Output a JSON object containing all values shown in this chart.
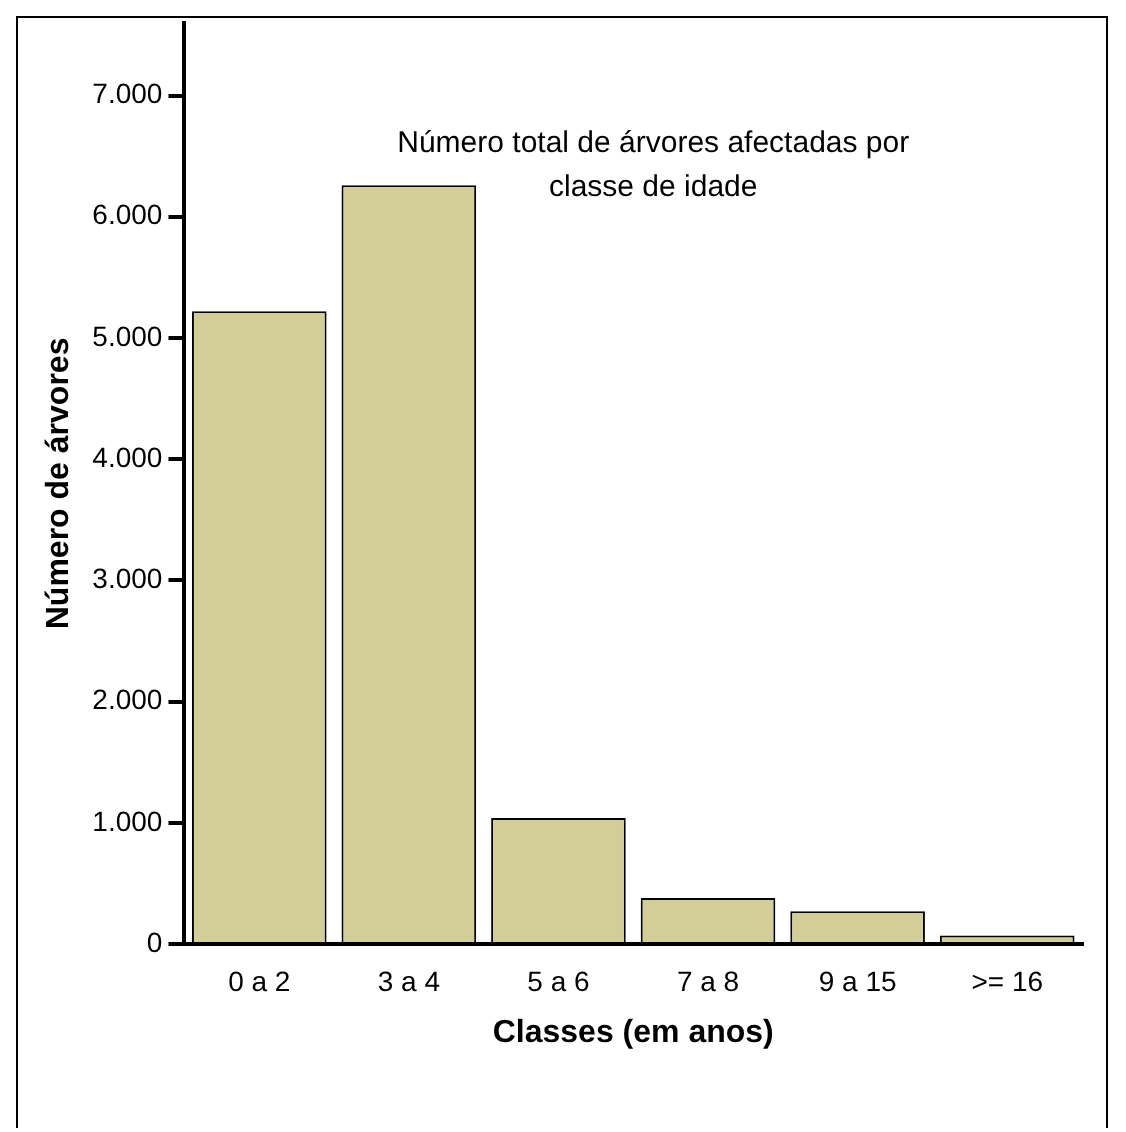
{
  "chart_data": {
    "type": "bar",
    "title": "Número total de árvores afectadas por classe de idade",
    "xlabel": "Classes (em anos)",
    "ylabel": "Número de árvores",
    "categories": [
      "0 a 2",
      "3 a 4",
      "5 a 6",
      "7 a 8",
      "9 a 15",
      ">= 16"
    ],
    "values": [
      5220,
      6260,
      1040,
      380,
      270,
      70
    ],
    "color": "#d3ce97",
    "ylim": [
      0,
      7600
    ],
    "yticks": [
      {
        "value": 0,
        "label": "0"
      },
      {
        "value": 1000,
        "label": "1.000"
      },
      {
        "value": 2000,
        "label": "2.000"
      },
      {
        "value": 3000,
        "label": "3.000"
      },
      {
        "value": 4000,
        "label": "4.000"
      },
      {
        "value": 5000,
        "label": "5.000"
      },
      {
        "value": 6000,
        "label": "6.000"
      },
      {
        "value": 7000,
        "label": "7.000"
      }
    ],
    "grid": false,
    "legend": false
  }
}
